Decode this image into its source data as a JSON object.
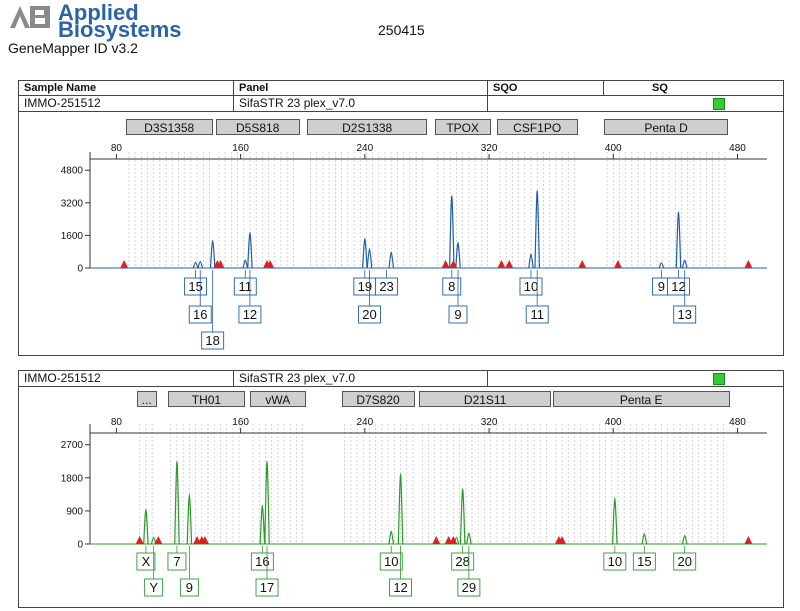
{
  "header": {
    "brand_line1": "Applied",
    "brand_line2": "Biosystems",
    "software": "GeneMapper ID v3.2",
    "run_id": "250415"
  },
  "table_header": {
    "sample_name": "Sample Name",
    "panel": "Panel",
    "sqo": "SQO",
    "sq": "SQ"
  },
  "colors": {
    "blue_trace": "#1f5fa8",
    "green_trace": "#2a9a2a",
    "size_marker": "#e02020",
    "bin_lines": "#c8c8c8",
    "sq_ok": "#33cc33"
  },
  "chart_data": [
    {
      "type": "line",
      "dye": "blue",
      "sample": "IMMO-251512",
      "panel": "SifaSTR 23 plex_v7.0",
      "xlim": [
        63,
        499
      ],
      "ylim": [
        0,
        5400
      ],
      "x_ticks": [
        80,
        160,
        240,
        320,
        400,
        480
      ],
      "y_ticks": [
        0,
        1600,
        3200,
        4800
      ],
      "loci": [
        {
          "name": "D3S1358",
          "range": [
            86,
            142
          ]
        },
        {
          "name": "D5S818",
          "range": [
            144,
            198
          ]
        },
        {
          "name": "D2S1338",
          "range": [
            203,
            280
          ]
        },
        {
          "name": "TPOX",
          "range": [
            285,
            321
          ]
        },
        {
          "name": "CSF1PO",
          "range": [
            325,
            377
          ]
        },
        {
          "name": "Penta D",
          "range": [
            394,
            474
          ]
        }
      ],
      "peaks": [
        {
          "x": 131,
          "height": 280
        },
        {
          "x": 134,
          "height": 320
        },
        {
          "x": 142,
          "height": 1350
        },
        {
          "x": 163,
          "height": 380
        },
        {
          "x": 166,
          "height": 1750
        },
        {
          "x": 240,
          "height": 1450
        },
        {
          "x": 243,
          "height": 950
        },
        {
          "x": 257,
          "height": 780
        },
        {
          "x": 296,
          "height": 3550
        },
        {
          "x": 300,
          "height": 1250
        },
        {
          "x": 347,
          "height": 680
        },
        {
          "x": 351,
          "height": 3800
        },
        {
          "x": 431,
          "height": 250
        },
        {
          "x": 442,
          "height": 2750
        },
        {
          "x": 446,
          "height": 380
        }
      ],
      "allele_labels": [
        {
          "label": "15",
          "x": 131,
          "row": 1
        },
        {
          "label": "16",
          "x": 134,
          "row": 2
        },
        {
          "label": "18",
          "x": 142,
          "row": 3
        },
        {
          "label": "11",
          "x": 163,
          "row": 1
        },
        {
          "label": "12",
          "x": 166,
          "row": 2
        },
        {
          "label": "19",
          "x": 240,
          "row": 1
        },
        {
          "label": "23",
          "x": 254,
          "row": 1
        },
        {
          "label": "20",
          "x": 243,
          "row": 2
        },
        {
          "label": "8",
          "x": 296,
          "row": 1
        },
        {
          "label": "9",
          "x": 300,
          "row": 2
        },
        {
          "label": "10",
          "x": 347,
          "row": 1
        },
        {
          "label": "11",
          "x": 351,
          "row": 2
        },
        {
          "label": "9",
          "x": 431,
          "row": 1
        },
        {
          "label": "12",
          "x": 442,
          "row": 1
        },
        {
          "label": "13",
          "x": 446,
          "row": 2
        }
      ],
      "size_standard": [
        85,
        145,
        147,
        177,
        179,
        292,
        297,
        328,
        333,
        380,
        403,
        487
      ]
    },
    {
      "type": "line",
      "dye": "green",
      "sample": "IMMO-251512",
      "panel": "SifaSTR 23 plex_v7.0",
      "xlim": [
        63,
        499
      ],
      "ylim": [
        0,
        3100
      ],
      "x_ticks": [
        80,
        160,
        240,
        320,
        400,
        480
      ],
      "y_ticks": [
        0,
        900,
        1800,
        2700
      ],
      "loci": [
        {
          "name": "...",
          "range": [
            93,
            106
          ]
        },
        {
          "name": "TH01",
          "range": [
            113,
            163
          ]
        },
        {
          "name": "vWA",
          "range": [
            166,
            202
          ]
        },
        {
          "name": "D7S820",
          "range": [
            225,
            272
          ]
        },
        {
          "name": "D21S11",
          "range": [
            275,
            360
          ]
        },
        {
          "name": "Penta E",
          "range": [
            361,
            475
          ]
        }
      ],
      "peaks": [
        {
          "x": 99,
          "height": 950
        },
        {
          "x": 104,
          "height": 180
        },
        {
          "x": 119,
          "height": 2250
        },
        {
          "x": 127,
          "height": 1350
        },
        {
          "x": 174,
          "height": 1050
        },
        {
          "x": 177,
          "height": 2250
        },
        {
          "x": 257,
          "height": 350
        },
        {
          "x": 263,
          "height": 1900
        },
        {
          "x": 299,
          "height": 180
        },
        {
          "x": 303,
          "height": 1500
        },
        {
          "x": 307,
          "height": 300
        },
        {
          "x": 401,
          "height": 1250
        },
        {
          "x": 420,
          "height": 280
        },
        {
          "x": 446,
          "height": 230
        }
      ],
      "allele_labels": [
        {
          "label": "X",
          "x": 99,
          "row": 1
        },
        {
          "label": "Y",
          "x": 104,
          "row": 2
        },
        {
          "label": "7",
          "x": 119,
          "row": 1
        },
        {
          "label": "9",
          "x": 127,
          "row": 2
        },
        {
          "label": "16",
          "x": 174,
          "row": 1
        },
        {
          "label": "17",
          "x": 177,
          "row": 2
        },
        {
          "label": "10",
          "x": 257,
          "row": 1
        },
        {
          "label": "12",
          "x": 263,
          "row": 2
        },
        {
          "label": "28",
          "x": 303,
          "row": 1
        },
        {
          "label": "29",
          "x": 307,
          "row": 2
        },
        {
          "label": "10",
          "x": 401,
          "row": 1
        },
        {
          "label": "15",
          "x": 420,
          "row": 1
        },
        {
          "label": "20",
          "x": 446,
          "row": 1
        }
      ],
      "size_standard": [
        95,
        107,
        132,
        135,
        137,
        286,
        294,
        297,
        365,
        367,
        487
      ]
    }
  ]
}
